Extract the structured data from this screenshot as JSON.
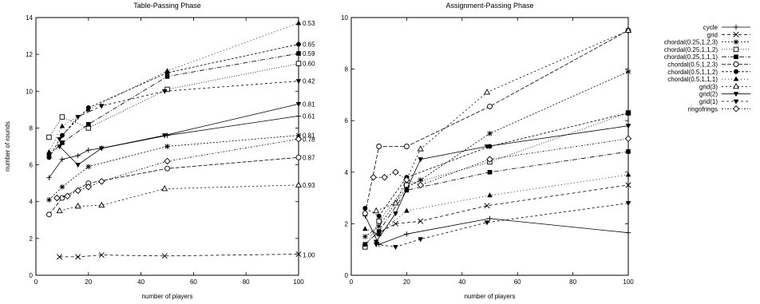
{
  "figure": {
    "legend_labels": [
      "cycle",
      "grid",
      "chordal(0.25,1,2,3)",
      "chordal(0.25,1,1,2)",
      "chordal(0.25,1,1,1)",
      "chordal(0.5,1,2,3)",
      "chordal(0.5,1,1,2)",
      "chordal(0.5,1,1,1)",
      "grid(3)",
      "grid(2)",
      "grid(1)",
      "ringofrings"
    ],
    "legend_placement": "right"
  },
  "chart_data": [
    {
      "type": "line",
      "title": "Table-Passing Phase",
      "xlabel": "number of players",
      "ylabel": "number of rounds",
      "xlim": [
        0,
        100
      ],
      "ylim": [
        0,
        14
      ],
      "xticks": [
        0,
        20,
        40,
        60,
        80,
        100
      ],
      "yticks": [
        0,
        2,
        4,
        6,
        8,
        10,
        12,
        14
      ],
      "grid": false,
      "right_labels": [
        {
          "text": "0.53",
          "y": 13.7
        },
        {
          "text": "0.65",
          "y": 12.55
        },
        {
          "text": "0.59",
          "y": 12.05
        },
        {
          "text": "0.60",
          "y": 11.5
        },
        {
          "text": "0.42",
          "y": 10.55
        },
        {
          "text": "0.81",
          "y": 9.3
        },
        {
          "text": "0.61",
          "y": 8.65
        },
        {
          "text": "0.81",
          "y": 7.6
        },
        {
          "text": "0.78",
          "y": 7.4
        },
        {
          "text": "0.87",
          "y": 6.4
        },
        {
          "text": "0.93",
          "y": 4.9
        },
        {
          "text": "1.00",
          "y": 1.1
        }
      ],
      "series": [
        {
          "name": "cycle",
          "x": [
            5,
            10,
            16,
            20,
            25,
            50,
            100
          ],
          "y": [
            5.3,
            6.3,
            6.5,
            6.8,
            6.9,
            7.6,
            8.65
          ]
        },
        {
          "name": "grid",
          "x": [
            9,
            16,
            25,
            49,
            100
          ],
          "y": [
            1.0,
            1.0,
            1.1,
            1.05,
            1.15
          ]
        },
        {
          "name": "chordal(0.25,1,2,3)",
          "x": [
            5,
            10,
            20,
            50,
            100
          ],
          "y": [
            4.1,
            4.8,
            5.9,
            7.0,
            7.6
          ]
        },
        {
          "name": "chordal(0.25,1,1,2)",
          "x": [
            5,
            10,
            20,
            50,
            100
          ],
          "y": [
            7.5,
            8.6,
            8.0,
            10.1,
            11.5
          ]
        },
        {
          "name": "chordal(0.25,1,1,1)",
          "x": [
            5,
            10,
            20,
            50,
            100
          ],
          "y": [
            6.5,
            7.2,
            8.2,
            10.8,
            12.05
          ]
        },
        {
          "name": "chordal(0.5,1,2,3)",
          "x": [
            5,
            10,
            20,
            50,
            100
          ],
          "y": [
            3.3,
            4.2,
            5.0,
            5.8,
            6.4
          ]
        },
        {
          "name": "chordal(0.5,1,1,2)",
          "x": [
            5,
            10,
            20,
            50,
            100
          ],
          "y": [
            6.4,
            7.6,
            9.1,
            11.0,
            12.55
          ]
        },
        {
          "name": "chordal(0.5,1,1,1)",
          "x": [
            5,
            10,
            20,
            50,
            100
          ],
          "y": [
            6.7,
            8.1,
            9.0,
            11.1,
            13.7
          ]
        },
        {
          "name": "grid(3)",
          "x": [
            9,
            16,
            25,
            49,
            100
          ],
          "y": [
            3.5,
            3.75,
            3.8,
            4.7,
            4.9
          ]
        },
        {
          "name": "grid(2)",
          "x": [
            9,
            16,
            25,
            49,
            100
          ],
          "y": [
            7.0,
            6.0,
            6.9,
            7.6,
            9.3
          ]
        },
        {
          "name": "grid(1)",
          "x": [
            9,
            16,
            25,
            49,
            100
          ],
          "y": [
            7.4,
            8.6,
            9.2,
            10.0,
            10.55
          ]
        },
        {
          "name": "ringofrings",
          "x": [
            8,
            12,
            16,
            20,
            25,
            50,
            100
          ],
          "y": [
            4.2,
            4.3,
            4.6,
            4.8,
            5.1,
            6.2,
            7.4
          ]
        }
      ]
    },
    {
      "type": "line",
      "title": "Assignment-Passing Phase",
      "xlabel": "number of players",
      "ylabel": "",
      "xlim": [
        0,
        100
      ],
      "ylim": [
        0,
        10
      ],
      "xticks": [
        0,
        20,
        40,
        60,
        80,
        100
      ],
      "yticks": [
        0,
        2,
        4,
        6,
        8,
        10
      ],
      "grid": false,
      "series": [
        {
          "name": "cycle",
          "x": [
            5,
            10,
            20,
            50,
            100
          ],
          "y": [
            2.3,
            1.2,
            1.6,
            2.2,
            1.65
          ]
        },
        {
          "name": "grid",
          "x": [
            9,
            16,
            25,
            49,
            100
          ],
          "y": [
            1.6,
            2.0,
            2.1,
            2.7,
            3.5
          ]
        },
        {
          "name": "chordal(0.25,1,2,3)",
          "x": [
            5,
            10,
            20,
            25,
            50,
            100
          ],
          "y": [
            1.5,
            1.9,
            3.4,
            3.7,
            5.5,
            7.9
          ]
        },
        {
          "name": "chordal(0.25,1,1,2)",
          "x": [
            5,
            10,
            20,
            50,
            100
          ],
          "y": [
            1.1,
            2.1,
            3.5,
            4.4,
            6.3
          ]
        },
        {
          "name": "chordal(0.25,1,1,1)",
          "x": [
            5,
            10,
            20,
            50,
            100
          ],
          "y": [
            1.2,
            1.7,
            3.3,
            4.0,
            4.8
          ]
        },
        {
          "name": "chordal(0.5,1,2,3)",
          "x": [
            5,
            10,
            20,
            50,
            100
          ],
          "y": [
            2.4,
            5.0,
            5.0,
            6.55,
            9.5
          ]
        },
        {
          "name": "chordal(0.5,1,1,2)",
          "x": [
            5,
            10,
            20,
            50,
            100
          ],
          "y": [
            2.6,
            2.3,
            3.8,
            5.0,
            6.3
          ]
        },
        {
          "name": "chordal(0.5,1,1,1)",
          "x": [
            5,
            10,
            20,
            50,
            100
          ],
          "y": [
            1.8,
            1.6,
            2.5,
            3.1,
            3.9
          ]
        },
        {
          "name": "grid(3)",
          "x": [
            9,
            16,
            25,
            49,
            100
          ],
          "y": [
            2.5,
            2.8,
            4.9,
            7.1,
            9.5
          ]
        },
        {
          "name": "grid(2)",
          "x": [
            9,
            16,
            25,
            49,
            100
          ],
          "y": [
            1.3,
            2.4,
            4.5,
            5.0,
            5.8
          ]
        },
        {
          "name": "grid(1)",
          "x": [
            9,
            16,
            25,
            49,
            100
          ],
          "y": [
            1.2,
            1.1,
            1.4,
            2.05,
            2.8
          ]
        },
        {
          "name": "ringofrings",
          "x": [
            8,
            12,
            16,
            20,
            25,
            50,
            100
          ],
          "y": [
            3.8,
            3.8,
            4.0,
            3.7,
            3.5,
            4.5,
            5.3
          ]
        }
      ]
    }
  ]
}
